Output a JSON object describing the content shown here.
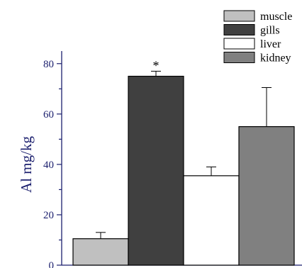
{
  "chart_data": {
    "type": "bar",
    "title": "",
    "xlabel": "",
    "ylabel": "Al mg/kg",
    "ylim": [
      0,
      85
    ],
    "yticks": [
      0,
      20,
      40,
      60,
      80
    ],
    "grid": false,
    "legend_position": "top-right",
    "series": [
      {
        "name": "muscle",
        "value": 10.5,
        "error": 2.5,
        "color": "#c0c0c0"
      },
      {
        "name": "gills",
        "value": 75,
        "error": 2,
        "color": "#404040",
        "annotation": "*"
      },
      {
        "name": "liver",
        "value": 35.5,
        "error": 3.5,
        "color": "#ffffff"
      },
      {
        "name": "kidney",
        "value": 55,
        "error": 15.5,
        "color": "#808080"
      }
    ]
  },
  "colors": {
    "axis": "#1b1f6e",
    "bar_edge": "#000000"
  }
}
